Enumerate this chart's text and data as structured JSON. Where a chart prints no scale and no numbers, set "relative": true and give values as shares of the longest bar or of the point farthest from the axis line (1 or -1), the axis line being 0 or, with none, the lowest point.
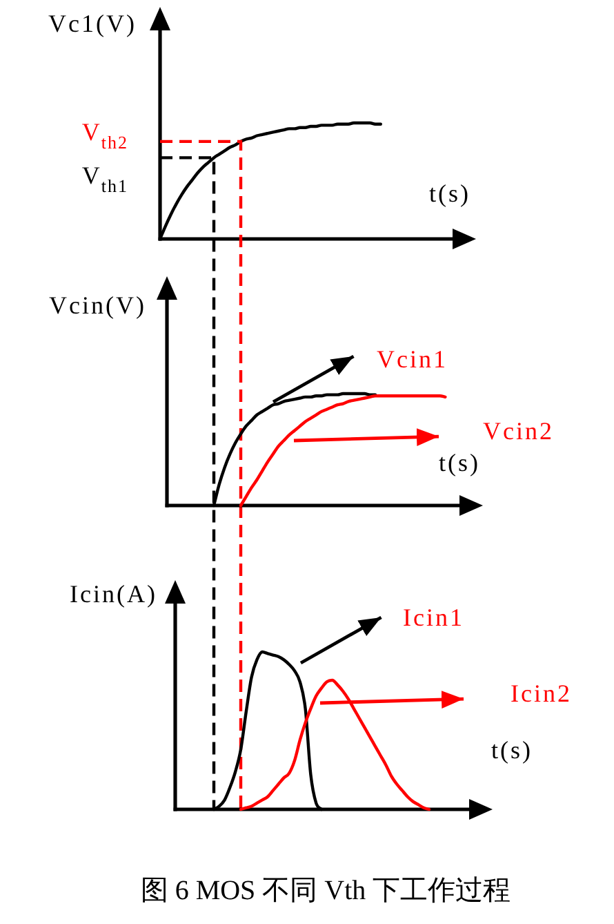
{
  "chart_data": [
    {
      "type": "line",
      "relative": true,
      "ylabel": "Vc1(V)",
      "xlabel": "t(s)",
      "categories": [
        null,
        null,
        null,
        null,
        null,
        null,
        null,
        null,
        null,
        null,
        null,
        null,
        null,
        null,
        null,
        null,
        null,
        null,
        null,
        null,
        null,
        null,
        null,
        null,
        null,
        null,
        null,
        null,
        null,
        null,
        null,
        null,
        null,
        null,
        null,
        null,
        null,
        null,
        null,
        null,
        null,
        null,
        null,
        null,
        null,
        null,
        null,
        null,
        null,
        null,
        null,
        null,
        null,
        null
      ],
      "series": [
        {
          "color": "#000000",
          "values": [
            0,
            0.11,
            0.21,
            0.3,
            0.38,
            0.45,
            0.51,
            0.57,
            0.62,
            0.66,
            0.7,
            0.73,
            0.76,
            0.79,
            0.81,
            0.84,
            0.86,
            0.87,
            0.89,
            0.9,
            0.91,
            0.92,
            0.93,
            0.94,
            0.95,
            0.95,
            0.96,
            0.96,
            0.97,
            0.97,
            0.98,
            0.98,
            0.98,
            0.99,
            0.99,
            0.99,
            1.0,
            1.0,
            1.0,
            1.0,
            0.99,
            0.99,
            null,
            null,
            null,
            null,
            null,
            null,
            null,
            null,
            null,
            null,
            null,
            null
          ]
        }
      ],
      "ref_lines": [
        {
          "axis": "y",
          "value": 0.7,
          "label": "V$_{th1}$",
          "color": "#000000",
          "line_style": "dashed"
        },
        {
          "axis": "y",
          "value": 0.84,
          "label": "V$_{th2}$",
          "color": "#ff0000",
          "line_style": "dashed"
        }
      ]
    },
    {
      "type": "line",
      "relative": true,
      "ylabel": "Vcin(V)",
      "xlabel": "t(s)",
      "legend": "right",
      "categories": [
        null,
        null,
        null,
        null,
        null,
        null,
        null,
        null,
        null,
        null,
        null,
        null,
        null,
        null,
        null,
        null,
        null,
        null,
        null,
        null,
        null,
        null,
        null,
        null,
        null,
        null,
        null,
        null,
        null,
        null,
        null,
        null,
        null,
        null,
        null,
        null,
        null,
        null,
        null,
        null,
        null,
        null,
        null,
        null,
        null,
        null,
        null,
        null,
        null,
        null,
        null,
        null,
        null,
        null
      ],
      "series": [
        {
          "name": "Vcin1",
          "color": "#000000",
          "values": [
            null,
            null,
            null,
            null,
            null,
            null,
            null,
            null,
            null,
            null,
            0,
            0.19,
            0.34,
            0.46,
            0.56,
            0.64,
            0.71,
            0.76,
            0.81,
            0.84,
            0.87,
            0.9,
            0.91,
            0.93,
            0.94,
            0.95,
            0.96,
            0.97,
            0.97,
            0.98,
            0.98,
            0.99,
            0.99,
            0.99,
            1.0,
            1.0,
            1.0,
            1.0,
            1.0,
            0.99,
            0.99,
            null,
            null,
            null,
            null,
            null,
            null,
            null,
            null,
            null,
            null,
            null,
            null,
            null
          ]
        },
        {
          "name": "Vcin2",
          "color": "#ff0000",
          "values": [
            null,
            null,
            null,
            null,
            null,
            null,
            null,
            null,
            null,
            null,
            null,
            null,
            null,
            null,
            null,
            0,
            0.08,
            0.16,
            0.23,
            0.31,
            0.39,
            0.46,
            0.53,
            0.58,
            0.63,
            0.67,
            0.71,
            0.75,
            0.78,
            0.81,
            0.84,
            0.86,
            0.88,
            0.9,
            0.91,
            0.93,
            0.94,
            0.95,
            0.96,
            0.97,
            0.98,
            0.98,
            0.98,
            0.98,
            0.98,
            0.98,
            0.98,
            0.98,
            0.98,
            0.98,
            0.98,
            0.98,
            0.98,
            0.97
          ]
        }
      ]
    },
    {
      "type": "line",
      "relative": true,
      "ylabel": "Icin(A)",
      "xlabel": "t(s)",
      "legend": "right",
      "categories": [
        null,
        null,
        null,
        null,
        null,
        null,
        null,
        null,
        null,
        null,
        null,
        null,
        null,
        null,
        null,
        null,
        null,
        null,
        null,
        null,
        null,
        null,
        null,
        null,
        null,
        null,
        null,
        null,
        null,
        null,
        null,
        null,
        null,
        null,
        null,
        null,
        null,
        null,
        null,
        null,
        null,
        null,
        null,
        null,
        null,
        null,
        null,
        null,
        null,
        null,
        null,
        null,
        null,
        null
      ],
      "series": [
        {
          "name": "Icin1",
          "color": "#000000",
          "values": [
            null,
            null,
            null,
            null,
            null,
            null,
            null,
            null,
            null,
            null,
            0,
            0.02,
            0.06,
            0.14,
            0.24,
            0.38,
            0.62,
            0.84,
            0.95,
            1.0,
            0.99,
            0.98,
            0.97,
            0.95,
            0.92,
            0.88,
            0.81,
            0.64,
            0.22,
            0.04,
            0,
            null,
            null,
            null,
            null,
            null,
            null,
            null,
            null,
            null,
            null,
            null,
            null,
            null,
            null,
            null,
            null,
            null,
            null,
            null,
            null,
            null,
            null,
            null
          ]
        },
        {
          "name": "Icin2",
          "color": "#ff0000",
          "values": [
            null,
            null,
            null,
            null,
            null,
            null,
            null,
            null,
            null,
            null,
            null,
            null,
            null,
            null,
            null,
            0,
            0.01,
            0.02,
            0.04,
            0.06,
            0.08,
            0.12,
            0.16,
            0.2,
            0.23,
            0.31,
            0.44,
            0.55,
            0.64,
            0.72,
            0.77,
            0.81,
            0.82,
            0.79,
            0.75,
            0.7,
            0.64,
            0.58,
            0.52,
            0.46,
            0.4,
            0.34,
            0.28,
            0.21,
            0.16,
            0.12,
            0.08,
            0.05,
            0.03,
            0.01,
            0,
            null,
            null,
            null
          ]
        }
      ],
      "annotations": [
        "图 6 MOS 不同 Vth 下工作过程"
      ]
    }
  ]
}
